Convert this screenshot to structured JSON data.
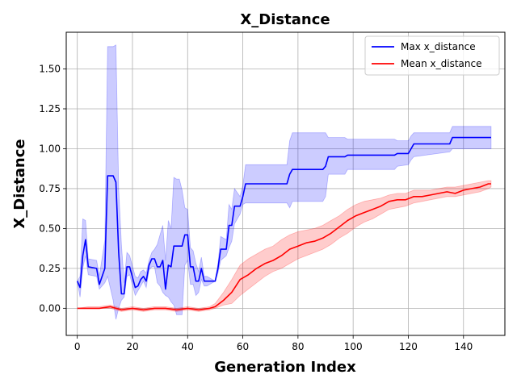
{
  "chart_data": {
    "type": "line",
    "title": "X_Distance",
    "xlabel": "Generation Index",
    "ylabel": "X_Distance",
    "xlim": [
      -4,
      155
    ],
    "ylim": [
      -0.17,
      1.73
    ],
    "xticks": [
      0,
      20,
      40,
      60,
      80,
      100,
      120,
      140
    ],
    "yticks": [
      0.0,
      0.25,
      0.5,
      0.75,
      1.0,
      1.25,
      1.5
    ],
    "xtick_labels": [
      "0",
      "20",
      "40",
      "60",
      "80",
      "100",
      "120",
      "140"
    ],
    "ytick_labels": [
      "0.00",
      "0.25",
      "0.50",
      "0.75",
      "1.00",
      "1.25",
      "1.50"
    ],
    "grid": true,
    "legend_position": "top-right",
    "series": [
      {
        "name": "Max x_distance",
        "color": "#0000ff",
        "band_color": "#0000ff",
        "x": [
          0,
          1,
          2,
          3,
          4,
          7,
          8,
          10,
          11,
          13,
          14,
          15,
          16,
          17,
          18,
          19,
          21,
          22,
          23,
          24,
          25,
          26,
          27,
          28,
          29,
          30,
          31,
          32,
          33,
          34,
          35,
          36,
          37,
          38,
          39,
          40,
          41,
          42,
          43,
          44,
          45,
          46,
          47,
          50,
          51,
          52,
          54,
          55,
          56,
          57,
          59,
          60,
          61,
          62,
          76,
          77,
          78,
          88,
          89,
          90,
          91,
          97,
          98,
          115,
          116,
          120,
          121,
          122,
          135,
          136,
          150
        ],
        "y": [
          0.17,
          0.13,
          0.33,
          0.43,
          0.26,
          0.25,
          0.15,
          0.25,
          0.83,
          0.83,
          0.79,
          0.35,
          0.09,
          0.09,
          0.26,
          0.26,
          0.13,
          0.14,
          0.18,
          0.2,
          0.17,
          0.27,
          0.31,
          0.31,
          0.26,
          0.26,
          0.3,
          0.12,
          0.27,
          0.26,
          0.39,
          0.39,
          0.39,
          0.39,
          0.46,
          0.46,
          0.26,
          0.26,
          0.17,
          0.17,
          0.25,
          0.17,
          0.17,
          0.17,
          0.25,
          0.37,
          0.37,
          0.52,
          0.52,
          0.64,
          0.64,
          0.7,
          0.78,
          0.78,
          0.78,
          0.84,
          0.87,
          0.87,
          0.87,
          0.89,
          0.95,
          0.95,
          0.96,
          0.96,
          0.97,
          0.97,
          1.0,
          1.03,
          1.03,
          1.07,
          1.07
        ],
        "band_low": [
          0.17,
          0.07,
          0.25,
          0.33,
          0.21,
          0.2,
          0.12,
          0.16,
          0.2,
          0.05,
          -0.07,
          0.0,
          0.05,
          0.07,
          0.2,
          0.21,
          0.08,
          0.11,
          0.14,
          0.17,
          0.13,
          0.24,
          0.26,
          0.26,
          0.16,
          0.14,
          0.1,
          0.08,
          0.07,
          0.04,
          0.02,
          -0.04,
          -0.04,
          -0.04,
          0.27,
          0.3,
          0.15,
          0.15,
          0.08,
          0.1,
          0.18,
          0.14,
          0.14,
          0.17,
          0.22,
          0.3,
          0.33,
          0.38,
          0.42,
          0.53,
          0.59,
          0.65,
          0.66,
          0.66,
          0.66,
          0.63,
          0.67,
          0.67,
          0.67,
          0.7,
          0.84,
          0.84,
          0.87,
          0.87,
          0.89,
          0.9,
          0.93,
          0.95,
          0.98,
          1.0,
          1.0
        ],
        "band_high": [
          0.17,
          0.2,
          0.56,
          0.55,
          0.31,
          0.3,
          0.2,
          0.43,
          1.64,
          1.64,
          1.65,
          0.75,
          0.4,
          0.16,
          0.35,
          0.33,
          0.2,
          0.19,
          0.23,
          0.24,
          0.22,
          0.3,
          0.35,
          0.37,
          0.4,
          0.46,
          0.52,
          0.3,
          0.55,
          0.5,
          0.82,
          0.81,
          0.81,
          0.74,
          0.63,
          0.62,
          0.38,
          0.36,
          0.28,
          0.23,
          0.32,
          0.2,
          0.2,
          0.17,
          0.28,
          0.45,
          0.43,
          0.65,
          0.62,
          0.75,
          0.7,
          0.77,
          0.9,
          0.9,
          0.9,
          1.05,
          1.1,
          1.1,
          1.1,
          1.1,
          1.07,
          1.07,
          1.06,
          1.06,
          1.05,
          1.05,
          1.08,
          1.1,
          1.1,
          1.14,
          1.14
        ]
      },
      {
        "name": "Mean x_distance",
        "color": "#ff0000",
        "band_color": "#ff0000",
        "x": [
          0,
          4,
          8,
          12,
          16,
          20,
          24,
          28,
          32,
          36,
          40,
          44,
          48,
          50,
          53,
          56,
          59,
          62,
          65,
          68,
          71,
          74,
          77,
          80,
          83,
          86,
          89,
          92,
          95,
          98,
          101,
          104,
          107,
          110,
          113,
          116,
          119,
          122,
          125,
          128,
          131,
          134,
          137,
          140,
          143,
          146,
          149,
          150
        ],
        "y": [
          0.0,
          0.0,
          0.0,
          0.01,
          -0.01,
          0.0,
          -0.01,
          0.0,
          0.0,
          -0.01,
          0.0,
          -0.01,
          0.0,
          0.01,
          0.05,
          0.1,
          0.18,
          0.21,
          0.25,
          0.28,
          0.3,
          0.33,
          0.37,
          0.39,
          0.41,
          0.42,
          0.44,
          0.47,
          0.51,
          0.55,
          0.58,
          0.6,
          0.62,
          0.64,
          0.67,
          0.68,
          0.68,
          0.7,
          0.7,
          0.71,
          0.72,
          0.73,
          0.72,
          0.74,
          0.75,
          0.76,
          0.78,
          0.78
        ],
        "band_low": [
          0.0,
          0.0,
          0.0,
          0.0,
          -0.02,
          -0.01,
          -0.02,
          -0.01,
          -0.01,
          -0.02,
          -0.01,
          -0.02,
          -0.01,
          0.0,
          0.02,
          0.03,
          0.08,
          0.12,
          0.16,
          0.2,
          0.23,
          0.25,
          0.28,
          0.31,
          0.33,
          0.35,
          0.37,
          0.4,
          0.44,
          0.47,
          0.51,
          0.54,
          0.56,
          0.59,
          0.62,
          0.63,
          0.64,
          0.66,
          0.67,
          0.68,
          0.69,
          0.7,
          0.7,
          0.71,
          0.72,
          0.73,
          0.75,
          0.76
        ],
        "band_high": [
          0.0,
          0.01,
          0.01,
          0.02,
          0.0,
          0.01,
          0.0,
          0.01,
          0.01,
          0.0,
          0.01,
          0.0,
          0.01,
          0.03,
          0.1,
          0.18,
          0.27,
          0.31,
          0.34,
          0.37,
          0.39,
          0.43,
          0.46,
          0.48,
          0.49,
          0.5,
          0.52,
          0.55,
          0.58,
          0.62,
          0.65,
          0.67,
          0.68,
          0.69,
          0.71,
          0.72,
          0.72,
          0.74,
          0.74,
          0.74,
          0.75,
          0.76,
          0.76,
          0.77,
          0.78,
          0.79,
          0.8,
          0.8
        ]
      }
    ]
  }
}
